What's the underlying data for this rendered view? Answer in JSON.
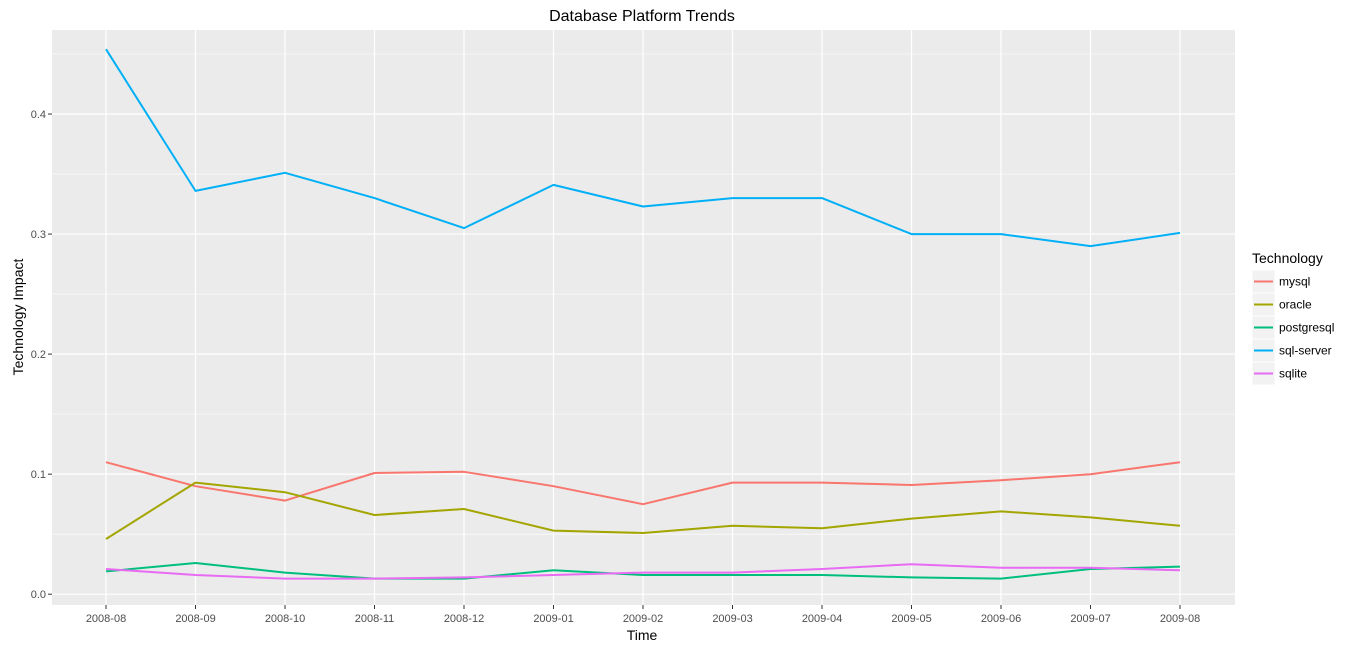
{
  "chart_data": {
    "type": "line",
    "title": "Database Platform Trends",
    "xlabel": "Time",
    "ylabel": "Technology Impact",
    "categories": [
      "2008-08",
      "2008-09",
      "2008-10",
      "2008-11",
      "2008-12",
      "2009-01",
      "2009-02",
      "2009-03",
      "2009-04",
      "2009-05",
      "2009-06",
      "2009-07",
      "2009-08"
    ],
    "ylim": [
      -0.009,
      0.47
    ],
    "yticks": [
      0.0,
      0.1,
      0.2,
      0.3,
      0.4
    ],
    "ytick_labels": [
      "0.0",
      "0.1",
      "0.2",
      "0.3",
      "0.4"
    ],
    "grid": true,
    "legend": {
      "title": "Technology",
      "position": "right"
    },
    "series": [
      {
        "name": "mysql",
        "color": "#F8766D",
        "values": [
          0.11,
          0.09,
          0.078,
          0.101,
          0.102,
          0.09,
          0.075,
          0.093,
          0.093,
          0.091,
          0.095,
          0.1,
          0.11
        ]
      },
      {
        "name": "oracle",
        "color": "#A3A500",
        "values": [
          0.046,
          0.093,
          0.085,
          0.066,
          0.071,
          0.053,
          0.051,
          0.057,
          0.055,
          0.063,
          0.069,
          0.064,
          0.057
        ]
      },
      {
        "name": "postgresql",
        "color": "#00BF7D",
        "values": [
          0.019,
          0.026,
          0.018,
          0.013,
          0.013,
          0.02,
          0.016,
          0.016,
          0.016,
          0.014,
          0.013,
          0.021,
          0.023
        ]
      },
      {
        "name": "sql-server",
        "color": "#00B0F6",
        "values": [
          0.454,
          0.336,
          0.351,
          0.33,
          0.305,
          0.341,
          0.323,
          0.33,
          0.33,
          0.3,
          0.3,
          0.29,
          0.301
        ]
      },
      {
        "name": "sqlite",
        "color": "#E76BF3",
        "values": [
          0.021,
          0.016,
          0.013,
          0.013,
          0.014,
          0.016,
          0.018,
          0.018,
          0.021,
          0.025,
          0.022,
          0.022,
          0.02
        ]
      }
    ],
    "colors": {
      "panel_background": "#EBEBEB",
      "grid": "#FFFFFF",
      "legend_key_background": "#F2F2F2"
    }
  }
}
